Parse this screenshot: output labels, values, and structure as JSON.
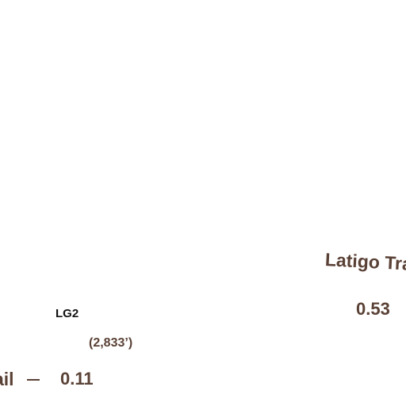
{
  "map": {
    "trail_labels": {
      "latigo_trail": "Latigo Trail",
      "left_trail_fragment": "ail"
    },
    "segment_distances": {
      "latigo": "0.53",
      "left": "0.11"
    },
    "peak": {
      "code": "LG2",
      "elevation": "(2,833’)"
    },
    "colors": {
      "label_brown": "#5a4136",
      "peak_code": "#111111",
      "background": "#ffffff"
    }
  }
}
